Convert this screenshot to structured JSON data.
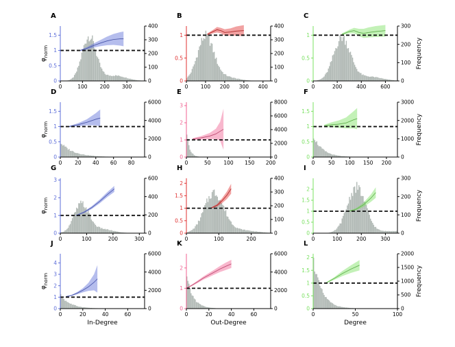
{
  "figure": {
    "xlabels": [
      "In-Degree",
      "Out-Degree",
      "Degree"
    ],
    "left_ylabel": "φnorm",
    "right_ylabel": "Frequency"
  },
  "chart_data": [
    {
      "type": "area",
      "panel": "A",
      "col": 0,
      "row": 0,
      "color": "#5b6cd8",
      "xlim": [
        0,
        380
      ],
      "ylim": [
        0,
        1.8
      ],
      "yticks": [
        0,
        0.5,
        1,
        1.5
      ],
      "xticks": [
        0,
        100,
        200,
        300
      ],
      "rlim": [
        0,
        400
      ],
      "rticks": [
        0,
        100,
        200,
        300,
        400
      ],
      "hist": {
        "type": "normal",
        "mu": 130,
        "sd": 32,
        "amp": 325,
        "tail": 0.12
      },
      "curve": {
        "x": [
          90,
          120,
          150,
          180,
          210,
          240,
          270,
          285
        ],
        "y": [
          1.0,
          1.07,
          1.16,
          1.24,
          1.31,
          1.36,
          1.38,
          1.38
        ],
        "band": [
          0.02,
          0.04,
          0.07,
          0.1,
          0.14,
          0.18,
          0.22,
          0.24
        ]
      }
    },
    {
      "type": "area",
      "panel": "B",
      "col": 1,
      "row": 0,
      "color": "#e03030",
      "xlim": [
        0,
        440
      ],
      "ylim": [
        0,
        1.2
      ],
      "yticks": [
        0,
        0.5,
        1
      ],
      "xticks": [
        0,
        100,
        200,
        300,
        400
      ],
      "rlim": [
        0,
        400
      ],
      "rticks": [
        0,
        100,
        200,
        300,
        400
      ],
      "hist": {
        "type": "normal",
        "mu": 100,
        "sd": 42,
        "amp": 315,
        "tail": 0.1
      },
      "curve": {
        "x": [
          110,
          140,
          160,
          180,
          200,
          230,
          260,
          300
        ],
        "y": [
          1.02,
          1.08,
          1.12,
          1.1,
          1.06,
          1.07,
          1.09,
          1.1
        ],
        "band": [
          0.02,
          0.04,
          0.06,
          0.06,
          0.07,
          0.08,
          0.1,
          0.12
        ]
      }
    },
    {
      "type": "area",
      "panel": "C",
      "col": 2,
      "row": 0,
      "color": "#79e060",
      "xlim": [
        0,
        700
      ],
      "ylim": [
        0,
        1.2
      ],
      "yticks": [
        0,
        0.5,
        1
      ],
      "xticks": [
        0,
        200,
        400,
        600
      ],
      "rlim": [
        0,
        300
      ],
      "rticks": [
        0,
        100,
        200,
        300
      ],
      "hist": {
        "type": "normal",
        "mu": 240,
        "sd": 70,
        "amp": 235,
        "tail": 0.1
      },
      "curve": {
        "x": [
          240,
          300,
          340,
          380,
          420,
          460,
          520,
          600
        ],
        "y": [
          1.02,
          1.08,
          1.1,
          1.06,
          1.04,
          1.06,
          1.08,
          1.1
        ],
        "band": [
          0.02,
          0.04,
          0.06,
          0.08,
          0.1,
          0.11,
          0.12,
          0.13
        ]
      }
    },
    {
      "type": "area",
      "panel": "D",
      "col": 0,
      "row": 1,
      "color": "#5b6cd8",
      "xlim": [
        0,
        95
      ],
      "ylim": [
        0,
        1.8
      ],
      "yticks": [
        0,
        0.5,
        1,
        1.5
      ],
      "xticks": [
        0,
        20,
        40,
        60,
        80
      ],
      "rlim": [
        0,
        6000
      ],
      "rticks": [
        0,
        2000,
        4000,
        6000
      ],
      "hist": {
        "type": "decay",
        "scale": 15,
        "amp": 1600
      },
      "curve": {
        "x": [
          10,
          20,
          30,
          40,
          45
        ],
        "y": [
          1.0,
          1.06,
          1.14,
          1.24,
          1.28
        ],
        "band": [
          0.02,
          0.05,
          0.1,
          0.2,
          0.28
        ]
      }
    },
    {
      "type": "area",
      "panel": "E",
      "col": 1,
      "row": 1,
      "color": "#f06090",
      "xlim": [
        0,
        200
      ],
      "ylim": [
        0,
        3.2
      ],
      "yticks": [
        0,
        1,
        2,
        3
      ],
      "xticks": [
        0,
        50,
        100,
        150,
        200
      ],
      "rlim": [
        0,
        8000
      ],
      "rticks": [
        0,
        2000,
        4000,
        6000,
        8000
      ],
      "hist": {
        "type": "decay",
        "scale": 7,
        "amp": 4200
      },
      "curve": {
        "x": [
          15,
          35,
          55,
          70,
          80,
          88
        ],
        "y": [
          1.05,
          1.12,
          1.22,
          1.35,
          1.5,
          1.62
        ],
        "band": [
          0.05,
          0.1,
          0.18,
          0.3,
          0.55,
          1.2
        ]
      }
    },
    {
      "type": "area",
      "panel": "F",
      "col": 2,
      "row": 1,
      "color": "#79e060",
      "xlim": [
        0,
        230
      ],
      "ylim": [
        0,
        1.8
      ],
      "yticks": [
        0,
        0.5,
        1,
        1.5
      ],
      "xticks": [
        0,
        50,
        100,
        150,
        200
      ],
      "rlim": [
        0,
        3000
      ],
      "rticks": [
        0,
        1000,
        2000,
        3000
      ],
      "hist": {
        "type": "decay",
        "scale": 25,
        "amp": 1200
      },
      "curve": {
        "x": [
          30,
          50,
          70,
          90,
          110,
          120
        ],
        "y": [
          1.02,
          1.06,
          1.08,
          1.12,
          1.22,
          1.26
        ],
        "band": [
          0.04,
          0.08,
          0.12,
          0.18,
          0.28,
          0.35
        ]
      }
    },
    {
      "type": "area",
      "panel": "G",
      "col": 0,
      "row": 2,
      "color": "#5b6cd8",
      "xlim": [
        0,
        320
      ],
      "ylim": [
        0,
        3.1
      ],
      "yticks": [
        0,
        1,
        2,
        3
      ],
      "xticks": [
        0,
        100,
        200,
        300
      ],
      "rlim": [
        0,
        600
      ],
      "rticks": [
        0,
        200,
        400,
        600
      ],
      "hist": {
        "type": "normal",
        "mu": 80,
        "sd": 28,
        "amp": 310,
        "tail": 0.15
      },
      "curve": {
        "x": [
          60,
          90,
          120,
          150,
          180,
          205
        ],
        "y": [
          1.0,
          1.18,
          1.45,
          1.8,
          2.2,
          2.5
        ],
        "band": [
          0.03,
          0.05,
          0.08,
          0.11,
          0.14,
          0.17
        ]
      }
    },
    {
      "type": "area",
      "panel": "H",
      "col": 1,
      "row": 2,
      "color": "#e03030",
      "xlim": [
        0,
        260
      ],
      "ylim": [
        0,
        2.2
      ],
      "yticks": [
        0,
        0.5,
        1,
        1.5,
        2
      ],
      "xticks": [
        0,
        100,
        200
      ],
      "rlim": [
        0,
        400
      ],
      "rticks": [
        0,
        100,
        200,
        300,
        400
      ],
      "hist": {
        "type": "normal",
        "mu": 85,
        "sd": 30,
        "amp": 290,
        "tail": 0.08
      },
      "curve": {
        "x": [
          75,
          95,
          110,
          125,
          138
        ],
        "y": [
          1.0,
          1.12,
          1.3,
          1.52,
          1.78
        ],
        "band": [
          0.02,
          0.05,
          0.1,
          0.15,
          0.2
        ]
      }
    },
    {
      "type": "area",
      "panel": "I",
      "col": 2,
      "row": 2,
      "color": "#79e060",
      "xlim": [
        0,
        350
      ],
      "ylim": [
        0,
        2.5
      ],
      "yticks": [
        0,
        0.5,
        1,
        1.5,
        2
      ],
      "xticks": [
        0,
        100,
        200,
        300
      ],
      "rlim": [
        0,
        300
      ],
      "rticks": [
        0,
        100,
        200,
        300
      ],
      "hist": {
        "type": "normal",
        "mu": 180,
        "sd": 38,
        "amp": 250,
        "tail": 0.05
      },
      "curve": {
        "x": [
          150,
          180,
          210,
          240,
          260
        ],
        "y": [
          1.0,
          1.1,
          1.3,
          1.6,
          1.85
        ],
        "band": [
          0.02,
          0.05,
          0.1,
          0.17,
          0.24
        ]
      }
    },
    {
      "type": "area",
      "panel": "J",
      "col": 0,
      "row": 3,
      "color": "#5b6cd8",
      "xlim": [
        0,
        75
      ],
      "ylim": [
        0,
        4.8
      ],
      "yticks": [
        0,
        1,
        2,
        3,
        4
      ],
      "xticks": [
        0,
        20,
        40,
        60
      ],
      "rlim": [
        0,
        6000
      ],
      "rticks": [
        0,
        2000,
        4000,
        6000
      ],
      "hist": {
        "type": "decay",
        "scale": 9,
        "amp": 1500
      },
      "curve": {
        "x": [
          5,
          10,
          15,
          20,
          25,
          30,
          33
        ],
        "y": [
          1.05,
          1.15,
          1.35,
          1.6,
          1.9,
          2.3,
          2.6
        ],
        "band": [
          0.03,
          0.05,
          0.1,
          0.18,
          0.35,
          0.7,
          1.2
        ]
      }
    },
    {
      "type": "area",
      "panel": "K",
      "col": 1,
      "row": 3,
      "color": "#f06090",
      "xlim": [
        0,
        75
      ],
      "ylim": [
        0,
        2.7
      ],
      "yticks": [
        0,
        1,
        2
      ],
      "xticks": [
        0,
        20,
        40,
        60
      ],
      "rlim": [
        0,
        6000
      ],
      "rticks": [
        0,
        2000,
        4000,
        6000
      ],
      "hist": {
        "type": "decay",
        "scale": 6,
        "amp": 3600
      },
      "curve": {
        "x": [
          0,
          5,
          10,
          15,
          20,
          25,
          30,
          35,
          40
        ],
        "y": [
          1.0,
          1.15,
          1.32,
          1.5,
          1.65,
          1.8,
          1.95,
          2.08,
          2.2
        ],
        "band": [
          0.02,
          0.04,
          0.06,
          0.08,
          0.1,
          0.12,
          0.15,
          0.18,
          0.2
        ]
      }
    },
    {
      "type": "area",
      "panel": "L",
      "col": 2,
      "row": 3,
      "color": "#79e060",
      "xlim": [
        0,
        100
      ],
      "ylim": [
        0,
        2.15
      ],
      "yticks": [
        0,
        0.5,
        1,
        1.5,
        2
      ],
      "xticks": [
        0,
        50,
        100
      ],
      "rlim": [
        0,
        2000
      ],
      "rticks": [
        0,
        500,
        1000,
        1500,
        2000
      ],
      "hist": {
        "type": "decay",
        "scale": 10,
        "amp": 1850
      },
      "curve": {
        "x": [
          15,
          25,
          35,
          45,
          55
        ],
        "y": [
          1.0,
          1.18,
          1.38,
          1.55,
          1.7
        ],
        "band": [
          0.02,
          0.05,
          0.1,
          0.15,
          0.2
        ]
      }
    }
  ]
}
